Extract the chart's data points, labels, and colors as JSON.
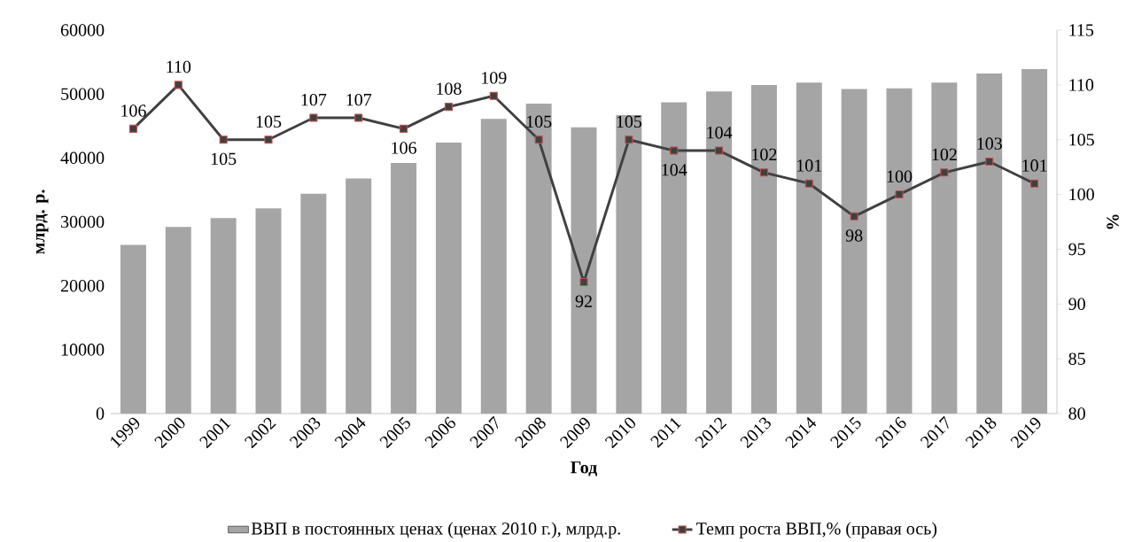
{
  "chart_data": {
    "type": "bar",
    "xlabel": "Год",
    "ylabel": "млрд. р.",
    "y2label": "%",
    "categories": [
      "1999",
      "2000",
      "2001",
      "2002",
      "2003",
      "2004",
      "2005",
      "2006",
      "2007",
      "2008",
      "2009",
      "2010",
      "2011",
      "2012",
      "2013",
      "2014",
      "2015",
      "2016",
      "2017",
      "2018",
      "2019"
    ],
    "series": [
      {
        "name": "ВВП в постоянных ценах (ценах 2010 г.), млрд.р.",
        "color": "#a5a5a5",
        "values": [
          26400,
          29200,
          30600,
          32100,
          34400,
          36800,
          39200,
          42400,
          46100,
          48500,
          44800,
          46700,
          48700,
          50400,
          51400,
          51800,
          50800,
          50900,
          51800,
          53200,
          53900
        ]
      },
      {
        "name": "Темп роста ВВП,% (правая ось)",
        "type": "line",
        "axis": "y2",
        "color": "#404040",
        "marker": "square",
        "line_style": "solid",
        "values": [
          106,
          110,
          105,
          105,
          107,
          107,
          106,
          108,
          109,
          105,
          92,
          105,
          104,
          104,
          102,
          101,
          98,
          100,
          102,
          103,
          101
        ],
        "value_labels": [
          "106",
          "110",
          "105",
          "105",
          "107",
          "107",
          "106",
          "108",
          "109",
          "105",
          "92",
          "105",
          "104",
          "104",
          "102",
          "101",
          "98",
          "100",
          "102",
          "103",
          "101"
        ]
      }
    ],
    "ylim": [
      0,
      60000
    ],
    "yticks": [
      0,
      10000,
      20000,
      30000,
      40000,
      50000,
      60000
    ],
    "y2lim": [
      80,
      115
    ],
    "y2ticks": [
      80,
      85,
      90,
      95,
      100,
      105,
      110,
      115
    ],
    "grid": false,
    "legend": "bottom"
  }
}
